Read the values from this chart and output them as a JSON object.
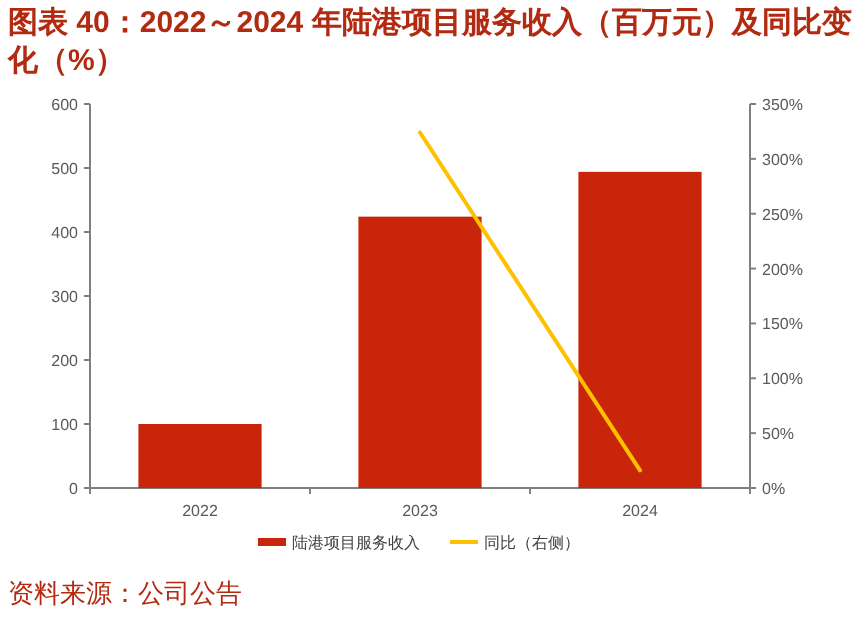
{
  "chart_data": {
    "type": "bar",
    "title": "图表 40：2022～2024 年陆港项目服务收入（百万元）及同比变化（%）",
    "categories": [
      "2022",
      "2023",
      "2024"
    ],
    "series": [
      {
        "name": "陆港项目服务收入",
        "color": "#c8250b",
        "values": [
          100,
          424,
          494
        ]
      },
      {
        "name": "同比（右侧）",
        "type": "line",
        "axis": "y2",
        "color": "#ffc000",
        "values": [
          null,
          324,
          16
        ]
      }
    ],
    "ylim": [
      0,
      600
    ],
    "yticks": [
      0,
      100,
      200,
      300,
      400,
      500,
      600
    ],
    "y2lim": [
      0,
      350
    ],
    "y2ticks": [
      {
        "value": 0,
        "label": "0%"
      },
      {
        "value": 50,
        "label": "50%"
      },
      {
        "value": 100,
        "label": "100%"
      },
      {
        "value": 150,
        "label": "150%"
      },
      {
        "value": 200,
        "label": "200%"
      },
      {
        "value": 250,
        "label": "250%"
      },
      {
        "value": 300,
        "label": "300%"
      },
      {
        "value": 350,
        "label": "350%"
      }
    ],
    "legend": "bottom",
    "grid": false,
    "marker": "none",
    "annotations": [
      "资料来源：公司公告"
    ]
  }
}
